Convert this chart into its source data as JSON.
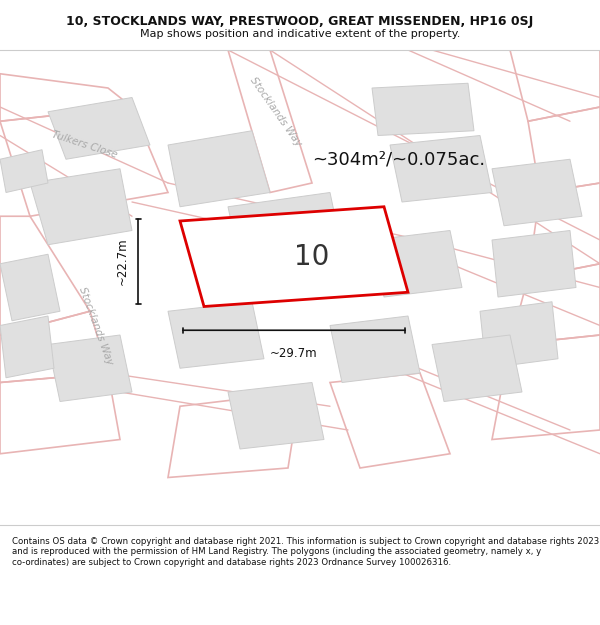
{
  "title_line1": "10, STOCKLANDS WAY, PRESTWOOD, GREAT MISSENDEN, HP16 0SJ",
  "title_line2": "Map shows position and indicative extent of the property.",
  "footer": "Contains OS data © Crown copyright and database right 2021. This information is subject to Crown copyright and database rights 2023 and is reproduced with the permission of HM Land Registry. The polygons (including the associated geometry, namely x, y co-ordinates) are subject to Crown copyright and database rights 2023 Ordnance Survey 100026316.",
  "area_text": "~304m²/~0.075ac.",
  "dim_horizontal": "~29.7m",
  "dim_vertical": "~22.7m",
  "property_label": "10",
  "street_label_tulkers": "Tulkers Close",
  "street_label_sw_top": "Stocklands Way",
  "street_label_sw_left": "Stocklands Way",
  "bg_color": "#f0f0f0",
  "map_bg": "#f0f0f0",
  "road_color": "#e8b4b4",
  "road_outline": "#e8b4b4",
  "property_fill": "#f0f0f0",
  "property_edge": "#dd0000",
  "building_fill": "#e0e0e0",
  "building_edge": "#cccccc",
  "title_fontsize": 9,
  "subtitle_fontsize": 8,
  "footer_fontsize": 6.2,
  "label_color": "#aaaaaa",
  "dim_color": "#111111"
}
